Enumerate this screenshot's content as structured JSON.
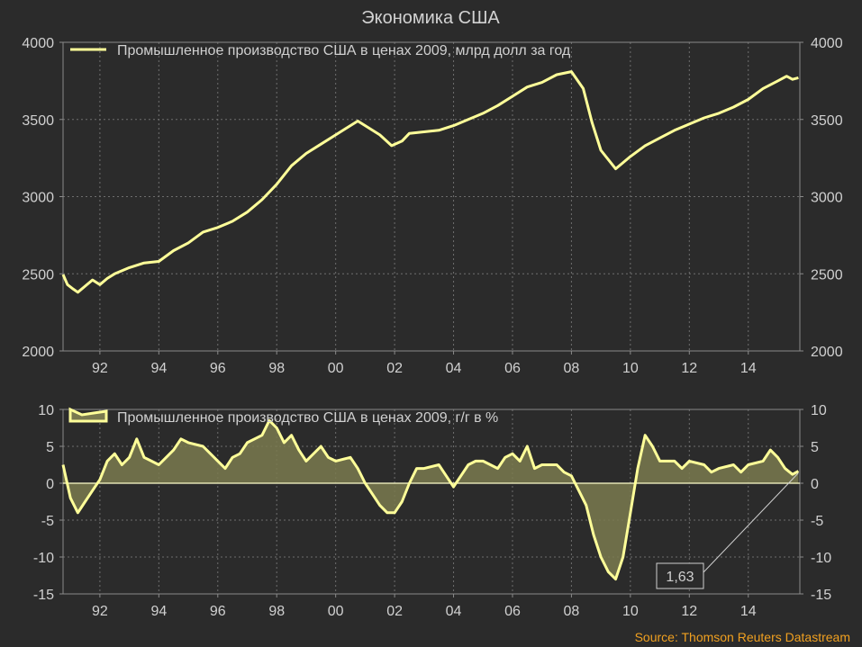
{
  "title": "Экономика США",
  "source": "Source: Thomson Reuters Datastream",
  "colors": {
    "background": "#2b2b2b",
    "line": "#ffff99",
    "area_fill": "#7a7a4f",
    "zero_line": "#ffffcc",
    "source": "#f0a020"
  },
  "chart_data": [
    {
      "type": "line",
      "legend": "Промышленное производство США в ценах 2009, млрд долл за год",
      "legend_position": "top-left",
      "grid": true,
      "xlim": [
        1990.75,
        2015.75
      ],
      "ylim": [
        2000,
        4000
      ],
      "x_ticks": [
        1992,
        1994,
        1996,
        1998,
        2000,
        2002,
        2004,
        2006,
        2008,
        2010,
        2012,
        2014
      ],
      "x_tick_labels": [
        "92",
        "94",
        "96",
        "98",
        "00",
        "02",
        "04",
        "06",
        "08",
        "10",
        "12",
        "14"
      ],
      "y_ticks": [
        2000,
        2500,
        3000,
        3500,
        4000
      ],
      "y_tick_labels": [
        "2000",
        "2500",
        "3000",
        "3500",
        "4000"
      ],
      "series": [
        {
          "name": "Промышленное производство США в ценах 2009, млрд долл за год",
          "points": [
            [
              1990.75,
              2495
            ],
            [
              1990.9,
              2430
            ],
            [
              1991.1,
              2400
            ],
            [
              1991.25,
              2380
            ],
            [
              1991.5,
              2420
            ],
            [
              1991.75,
              2460
            ],
            [
              1992.0,
              2430
            ],
            [
              1992.25,
              2470
            ],
            [
              1992.5,
              2500
            ],
            [
              1993.0,
              2540
            ],
            [
              1993.5,
              2570
            ],
            [
              1994.0,
              2580
            ],
            [
              1994.5,
              2650
            ],
            [
              1995.0,
              2700
            ],
            [
              1995.5,
              2770
            ],
            [
              1996.0,
              2800
            ],
            [
              1996.5,
              2840
            ],
            [
              1997.0,
              2900
            ],
            [
              1997.5,
              2980
            ],
            [
              1998.0,
              3080
            ],
            [
              1998.5,
              3200
            ],
            [
              1999.0,
              3280
            ],
            [
              1999.5,
              3340
            ],
            [
              2000.0,
              3400
            ],
            [
              2000.5,
              3460
            ],
            [
              2000.75,
              3490
            ],
            [
              2001.0,
              3460
            ],
            [
              2001.5,
              3400
            ],
            [
              2001.9,
              3330
            ],
            [
              2002.25,
              3360
            ],
            [
              2002.5,
              3410
            ],
            [
              2003.0,
              3420
            ],
            [
              2003.5,
              3430
            ],
            [
              2004.0,
              3460
            ],
            [
              2004.5,
              3500
            ],
            [
              2005.0,
              3540
            ],
            [
              2005.5,
              3590
            ],
            [
              2006.0,
              3650
            ],
            [
              2006.5,
              3710
            ],
            [
              2007.0,
              3740
            ],
            [
              2007.5,
              3790
            ],
            [
              2008.0,
              3810
            ],
            [
              2008.4,
              3700
            ],
            [
              2008.7,
              3480
            ],
            [
              2009.0,
              3300
            ],
            [
              2009.5,
              3180
            ],
            [
              2010.0,
              3260
            ],
            [
              2010.5,
              3330
            ],
            [
              2011.0,
              3380
            ],
            [
              2011.5,
              3430
            ],
            [
              2012.0,
              3470
            ],
            [
              2012.5,
              3510
            ],
            [
              2013.0,
              3540
            ],
            [
              2013.5,
              3580
            ],
            [
              2014.0,
              3630
            ],
            [
              2014.5,
              3700
            ],
            [
              2015.0,
              3750
            ],
            [
              2015.3,
              3780
            ],
            [
              2015.5,
              3760
            ],
            [
              2015.7,
              3770
            ]
          ]
        }
      ]
    },
    {
      "type": "area",
      "legend": "Промышленное производство США в ценах 2009, г/г в %",
      "legend_position": "top-left",
      "grid": true,
      "xlim": [
        1990.75,
        2015.75
      ],
      "ylim": [
        -15,
        10
      ],
      "x_ticks": [
        1992,
        1994,
        1996,
        1998,
        2000,
        2002,
        2004,
        2006,
        2008,
        2010,
        2012,
        2014
      ],
      "x_tick_labels": [
        "92",
        "94",
        "96",
        "98",
        "00",
        "02",
        "04",
        "06",
        "08",
        "10",
        "12",
        "14"
      ],
      "y_ticks": [
        -15,
        -10,
        -5,
        0,
        5,
        10
      ],
      "y_tick_labels": [
        "-15",
        "-10",
        "-5",
        "0",
        "5",
        "10"
      ],
      "annotation": {
        "text": "1,63",
        "x": 2015.7,
        "y": 1.63
      },
      "series": [
        {
          "name": "Промышленное производство США в ценах 2009, г/г в %",
          "points": [
            [
              1990.75,
              2.5
            ],
            [
              1991.0,
              -2.0
            ],
            [
              1991.25,
              -4.0
            ],
            [
              1991.5,
              -2.5
            ],
            [
              1991.75,
              -1.0
            ],
            [
              1992.0,
              0.5
            ],
            [
              1992.25,
              3.0
            ],
            [
              1992.5,
              4.0
            ],
            [
              1992.75,
              2.5
            ],
            [
              1993.0,
              3.5
            ],
            [
              1993.25,
              6.0
            ],
            [
              1993.5,
              3.5
            ],
            [
              1993.75,
              3.0
            ],
            [
              1994.0,
              2.5
            ],
            [
              1994.5,
              4.5
            ],
            [
              1994.75,
              6.0
            ],
            [
              1995.0,
              5.5
            ],
            [
              1995.5,
              5.0
            ],
            [
              1995.75,
              4.0
            ],
            [
              1996.0,
              3.0
            ],
            [
              1996.25,
              2.0
            ],
            [
              1996.5,
              3.5
            ],
            [
              1996.75,
              4.0
            ],
            [
              1997.0,
              5.5
            ],
            [
              1997.5,
              6.5
            ],
            [
              1997.75,
              8.5
            ],
            [
              1998.0,
              7.5
            ],
            [
              1998.25,
              5.5
            ],
            [
              1998.5,
              6.5
            ],
            [
              1998.75,
              4.5
            ],
            [
              1999.0,
              3.0
            ],
            [
              1999.5,
              5.0
            ],
            [
              1999.75,
              3.5
            ],
            [
              2000.0,
              3.0
            ],
            [
              2000.5,
              3.5
            ],
            [
              2000.75,
              2.0
            ],
            [
              2001.0,
              0.0
            ],
            [
              2001.25,
              -1.5
            ],
            [
              2001.5,
              -3.0
            ],
            [
              2001.75,
              -4.0
            ],
            [
              2002.0,
              -4.0
            ],
            [
              2002.25,
              -2.5
            ],
            [
              2002.5,
              0.0
            ],
            [
              2002.75,
              2.0
            ],
            [
              2003.0,
              2.0
            ],
            [
              2003.5,
              2.5
            ],
            [
              2003.75,
              1.0
            ],
            [
              2004.0,
              -0.5
            ],
            [
              2004.25,
              1.0
            ],
            [
              2004.5,
              2.5
            ],
            [
              2004.75,
              3.0
            ],
            [
              2005.0,
              3.0
            ],
            [
              2005.5,
              2.0
            ],
            [
              2005.75,
              3.5
            ],
            [
              2006.0,
              4.0
            ],
            [
              2006.25,
              3.0
            ],
            [
              2006.5,
              5.0
            ],
            [
              2006.75,
              2.0
            ],
            [
              2007.0,
              2.5
            ],
            [
              2007.5,
              2.5
            ],
            [
              2007.75,
              1.5
            ],
            [
              2008.0,
              1.0
            ],
            [
              2008.25,
              -1.0
            ],
            [
              2008.5,
              -3.0
            ],
            [
              2008.75,
              -7.0
            ],
            [
              2009.0,
              -10.0
            ],
            [
              2009.25,
              -12.0
            ],
            [
              2009.5,
              -13.0
            ],
            [
              2009.75,
              -10.0
            ],
            [
              2010.0,
              -4.0
            ],
            [
              2010.25,
              2.0
            ],
            [
              2010.5,
              6.5
            ],
            [
              2010.75,
              5.0
            ],
            [
              2011.0,
              3.0
            ],
            [
              2011.5,
              3.0
            ],
            [
              2011.75,
              2.0
            ],
            [
              2012.0,
              3.0
            ],
            [
              2012.5,
              2.5
            ],
            [
              2012.75,
              1.5
            ],
            [
              2013.0,
              2.0
            ],
            [
              2013.5,
              2.5
            ],
            [
              2013.75,
              1.5
            ],
            [
              2014.0,
              2.5
            ],
            [
              2014.5,
              3.0
            ],
            [
              2014.75,
              4.5
            ],
            [
              2015.0,
              3.5
            ],
            [
              2015.25,
              2.0
            ],
            [
              2015.5,
              1.2
            ],
            [
              2015.7,
              1.63
            ]
          ]
        }
      ]
    }
  ]
}
